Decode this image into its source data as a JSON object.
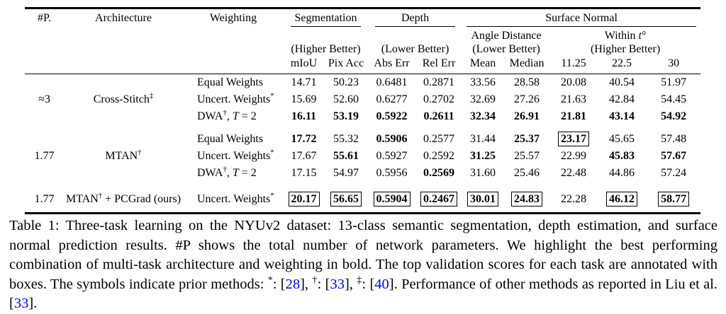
{
  "colors": {
    "cite": "#0000EE",
    "rule": "#000000"
  },
  "table": {
    "left_headers": [
      "#P.",
      "Architecture",
      "Weighting"
    ],
    "groups_header": {
      "segmentation": {
        "label": "Segmentation",
        "better": "(Higher Better)",
        "cols": [
          "mIoU",
          "Pix Acc"
        ]
      },
      "depth": {
        "label": "Depth",
        "better": "(Lower Better)",
        "cols": [
          "Abs Err",
          "Rel Err"
        ]
      },
      "surface_normal": {
        "label": "Surface Normal",
        "angle": {
          "line1": "Angle Distance",
          "line2": "(Lower Better)",
          "cols": [
            "Mean",
            "Median"
          ]
        },
        "within": {
          "line1": [
            {
              "t": "Within "
            },
            {
              "t": "t",
              "it": true
            },
            {
              "t": "°"
            }
          ],
          "line2": "(Higher Better)",
          "cols": [
            "11.25",
            "22.5",
            "30"
          ]
        }
      }
    },
    "groups": [
      {
        "params": "≈3",
        "arch": [
          {
            "t": "Cross-Stitch"
          },
          {
            "t": "‡",
            "sup": true
          }
        ],
        "rows": [
          {
            "w": [
              {
                "t": "Equal Weights"
              }
            ],
            "v": [
              "14.71",
              "50.23",
              "0.6481",
              "0.2871",
              "33.56",
              "28.58",
              "20.08",
              "40.54",
              "51.97"
            ],
            "s": [
              "p",
              "p",
              "p",
              "p",
              "p",
              "p",
              "p",
              "p",
              "p"
            ]
          },
          {
            "w": [
              {
                "t": "Uncert. Weights"
              },
              {
                "t": "*",
                "sup": true
              }
            ],
            "v": [
              "15.69",
              "52.60",
              "0.6277",
              "0.2702",
              "32.69",
              "27.26",
              "21.63",
              "42.84",
              "54.45"
            ],
            "s": [
              "p",
              "p",
              "p",
              "p",
              "p",
              "p",
              "p",
              "p",
              "p"
            ]
          },
          {
            "w": [
              {
                "t": "DWA"
              },
              {
                "t": "†",
                "sup": true
              },
              {
                "t": ", "
              },
              {
                "t": "T",
                "it": true
              },
              {
                "t": " = 2"
              }
            ],
            "v": [
              "16.11",
              "53.19",
              "0.5922",
              "0.2611",
              "32.34",
              "26.91",
              "21.81",
              "43.14",
              "54.92"
            ],
            "s": [
              "b",
              "b",
              "b",
              "b",
              "b",
              "b",
              "b",
              "b",
              "b"
            ]
          }
        ]
      },
      {
        "params": "1.77",
        "arch": [
          {
            "t": "MTAN"
          },
          {
            "t": "†",
            "sup": true
          }
        ],
        "rows": [
          {
            "w": [
              {
                "t": "Equal Weights"
              }
            ],
            "v": [
              "17.72",
              "55.32",
              "0.5906",
              "0.2577",
              "31.44",
              "25.37",
              "23.17",
              "45.65",
              "57.48"
            ],
            "s": [
              "b",
              "p",
              "b",
              "p",
              "p",
              "b",
              "x",
              "p",
              "p"
            ]
          },
          {
            "w": [
              {
                "t": "Uncert. Weights"
              },
              {
                "t": "*",
                "sup": true
              }
            ],
            "v": [
              "17.67",
              "55.61",
              "0.5927",
              "0.2592",
              "31.25",
              "25.57",
              "22.99",
              "45.83",
              "57.67"
            ],
            "s": [
              "p",
              "b",
              "p",
              "p",
              "b",
              "p",
              "p",
              "b",
              "b"
            ]
          },
          {
            "w": [
              {
                "t": "DWA"
              },
              {
                "t": "†",
                "sup": true
              },
              {
                "t": ", "
              },
              {
                "t": "T",
                "it": true
              },
              {
                "t": " = 2"
              }
            ],
            "v": [
              "17.15",
              "54.97",
              "0.5956",
              "0.2569",
              "31.60",
              "25.46",
              "22.48",
              "44.86",
              "57.24"
            ],
            "s": [
              "p",
              "p",
              "p",
              "b",
              "p",
              "p",
              "p",
              "p",
              "p"
            ]
          }
        ]
      },
      {
        "params": "1.77",
        "arch": [
          {
            "t": "MTAN"
          },
          {
            "t": "†",
            "sup": true
          },
          {
            "t": " + PCGrad (ours)"
          }
        ],
        "rows": [
          {
            "w": [
              {
                "t": "Uncert. Weights"
              },
              {
                "t": "*",
                "sup": true
              }
            ],
            "v": [
              "20.17",
              "56.65",
              "0.5904",
              "0.2467",
              "30.01",
              "24.83",
              "22.28",
              "46.12",
              "58.77"
            ],
            "s": [
              "x",
              "x",
              "x",
              "x",
              "x",
              "x",
              "p",
              "x",
              "x"
            ]
          }
        ]
      }
    ]
  },
  "caption": {
    "segments": [
      {
        "t": "Table 1: "
      },
      {
        "t": "Three-task learning on the NYUv2 dataset: 13-class semantic segmentation, depth estimation, and surface normal prediction results. #P shows the total number of network parameters. We highlight the best performing combination of multi-task architecture and weighting in bold. The top validation scores for each task are annotated with boxes. The symbols indicate prior methods: "
      },
      {
        "t": "*",
        "sup": true
      },
      {
        "t": ": ["
      },
      {
        "t": "28",
        "cite": true
      },
      {
        "t": "], "
      },
      {
        "t": "†",
        "sup": true
      },
      {
        "t": ": ["
      },
      {
        "t": "33",
        "cite": true
      },
      {
        "t": "], "
      },
      {
        "t": "‡",
        "sup": true
      },
      {
        "t": ": ["
      },
      {
        "t": "40",
        "cite": true
      },
      {
        "t": "]. Performance of other methods as reported in Liu et al. ["
      },
      {
        "t": "33",
        "cite": true
      },
      {
        "t": "]."
      }
    ]
  }
}
